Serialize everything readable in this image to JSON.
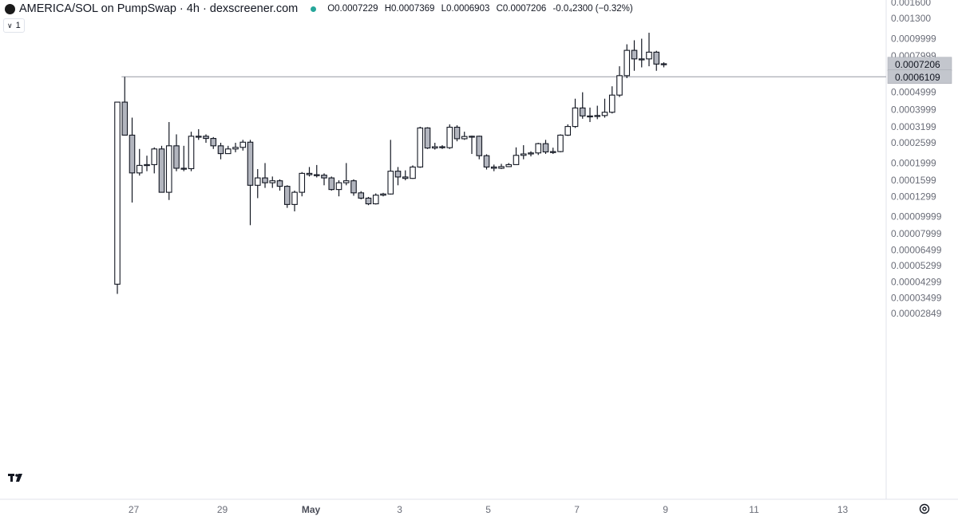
{
  "header": {
    "title": "AMERICA/SOL on PumpSwap · 4h · dexscreener.com",
    "ohlc": {
      "open": "O0.0007229",
      "high": "H0.0007369",
      "low": "L0.0006903",
      "close": "C0.0007206",
      "change": "-0.0₄2300 (−0.32%)"
    }
  },
  "toolbar": {
    "interval_label": "1"
  },
  "chart_data": {
    "type": "candlestick",
    "y_scale": "log",
    "y_range": [
      2.8e-06,
      0.00165
    ],
    "y_ticks": [
      {
        "value": 0.0016,
        "label": "0.001600"
      },
      {
        "value": 0.0013,
        "label": "0.001300"
      },
      {
        "value": 0.0009999,
        "label": "0.0009999"
      },
      {
        "value": 0.0007999,
        "label": "0.0007999"
      },
      {
        "value": 0.0006499,
        "label": "0.0006499"
      },
      {
        "value": 0.0004999,
        "label": "0.0004999"
      },
      {
        "value": 0.0003999,
        "label": "0.0003999"
      },
      {
        "value": 0.0003199,
        "label": "0.0003199"
      },
      {
        "value": 0.0002599,
        "label": "0.0002599"
      },
      {
        "value": 0.0001999,
        "label": "0.0001999"
      },
      {
        "value": 0.0001599,
        "label": "0.0001599"
      },
      {
        "value": 0.0001299,
        "label": "0.0001299"
      },
      {
        "value": 9.999e-05,
        "label": "0.00009999"
      },
      {
        "value": 7.999e-05,
        "label": "0.00007999"
      },
      {
        "value": 6.499e-05,
        "label": "0.00006499"
      },
      {
        "value": 5.299e-05,
        "label": "0.00005299"
      },
      {
        "value": 4.299e-05,
        "label": "0.00004299"
      },
      {
        "value": 3.499e-05,
        "label": "0.00003499"
      },
      {
        "value": 2.849e-05,
        "label": "0.00002849"
      }
    ],
    "x_labels": [
      {
        "day": 27,
        "label": "27",
        "bold": false
      },
      {
        "day": 29,
        "label": "29",
        "bold": false
      },
      {
        "day": 31,
        "label": "May",
        "bold": true
      },
      {
        "day": 33,
        "label": "3",
        "bold": false
      },
      {
        "day": 35,
        "label": "5",
        "bold": false
      },
      {
        "day": 37,
        "label": "7",
        "bold": false
      },
      {
        "day": 39,
        "label": "9",
        "bold": false
      },
      {
        "day": 41,
        "label": "11",
        "bold": false
      },
      {
        "day": 43,
        "label": "13",
        "bold": false
      }
    ],
    "x_start_day": 26.63,
    "candle_interval_hours": 4,
    "candles": [
      [
        4.17e-05,
        0.00044,
        3.68e-05,
        0.00044
      ],
      [
        0.00044,
        0.000287,
        0.000287,
        0.00061
      ],
      [
        0.000287,
        0.000176,
        0.00012,
        0.00036
      ],
      [
        0.000176,
        0.000194,
        0.00017,
        0.00024
      ],
      [
        0.000194,
        0.000196,
        0.00018,
        0.00022
      ],
      [
        0.000196,
        0.00024,
        0.000175,
        0.000245
      ],
      [
        0.00024,
        0.000137,
        0.000137,
        0.00025
      ],
      [
        0.000137,
        0.00025,
        0.000124,
        0.00034
      ],
      [
        0.00025,
        0.000187,
        0.00018,
        0.00029
      ],
      [
        0.000187,
        0.000186,
        0.00018,
        0.00025
      ],
      [
        0.000186,
        0.000283,
        0.00018,
        0.0003
      ],
      [
        0.000283,
        0.000283,
        0.00027,
        0.00031
      ],
      [
        0.000283,
        0.000275,
        0.00026,
        0.00029
      ],
      [
        0.000275,
        0.00025,
        0.00024,
        0.00028
      ],
      [
        0.00025,
        0.000226,
        0.00021,
        0.00026
      ],
      [
        0.000226,
        0.00024,
        0.000225,
        0.00025
      ],
      [
        0.00024,
        0.000245,
        0.00023,
        0.00026
      ],
      [
        0.000245,
        0.000262,
        0.000235,
        0.00027
      ],
      [
        0.000262,
        0.00015,
        8.95e-05,
        0.00027
      ],
      [
        0.00015,
        0.000165,
        0.000127,
        0.000185
      ],
      [
        0.000165,
        0.000155,
        0.000145,
        0.0002
      ],
      [
        0.000155,
        0.000159,
        0.000145,
        0.000168
      ],
      [
        0.000159,
        0.000148,
        0.00014,
        0.000162
      ],
      [
        0.000148,
        0.000117,
        0.000112,
        0.00015
      ],
      [
        0.000117,
        0.000137,
        0.000107,
        0.00014
      ],
      [
        0.000137,
        0.000175,
        0.00013,
        0.000178
      ],
      [
        0.000175,
        0.000172,
        0.000168,
        0.00019
      ],
      [
        0.000172,
        0.000171,
        0.000166,
        0.000195
      ],
      [
        0.000171,
        0.000165,
        0.00015,
        0.000175
      ],
      [
        0.000165,
        0.000142,
        0.00014,
        0.000168
      ],
      [
        0.000142,
        0.000155,
        0.00013,
        0.00016
      ],
      [
        0.000155,
        0.000159,
        0.00015,
        0.0002
      ],
      [
        0.000159,
        0.000136,
        0.000131,
        0.000162
      ],
      [
        0.000136,
        0.000127,
        0.000125,
        0.000139
      ],
      [
        0.000127,
        0.000118,
        0.000116,
        0.000129
      ],
      [
        0.000118,
        0.000132,
        0.000117,
        0.000135
      ],
      [
        0.000132,
        0.000134,
        0.00013,
        0.000136
      ],
      [
        0.000134,
        0.00018,
        0.000133,
        0.00027
      ],
      [
        0.00018,
        0.000167,
        0.00015,
        0.00019
      ],
      [
        0.000167,
        0.000164,
        0.00016,
        0.000182
      ],
      [
        0.000164,
        0.00019,
        0.000163,
        0.000194
      ],
      [
        0.00019,
        0.000315,
        0.000188,
        0.00032
      ],
      [
        0.000315,
        0.000243,
        0.00024,
        0.000318
      ],
      [
        0.000243,
        0.000247,
        0.000238,
        0.00026
      ],
      [
        0.000247,
        0.000244,
        0.00024,
        0.000252
      ],
      [
        0.000244,
        0.000318,
        0.00024,
        0.00033
      ],
      [
        0.000318,
        0.000274,
        0.000265,
        0.000326
      ],
      [
        0.000274,
        0.000282,
        0.00027,
        0.0003
      ],
      [
        0.000282,
        0.000283,
        0.000225,
        0.000285
      ],
      [
        0.000283,
        0.00022,
        0.00021,
        0.000285
      ],
      [
        0.00022,
        0.00019,
        0.000184,
        0.000224
      ],
      [
        0.00019,
        0.000187,
        0.00018,
        0.000196
      ],
      [
        0.000187,
        0.000191,
        0.000185,
        0.000198
      ],
      [
        0.000191,
        0.000196,
        0.00019,
        0.0002
      ],
      [
        0.000196,
        0.000221,
        0.000195,
        0.000245
      ],
      [
        0.000221,
        0.000225,
        0.00021,
        0.000252
      ],
      [
        0.000225,
        0.000228,
        0.000218,
        0.000233
      ],
      [
        0.000228,
        0.000257,
        0.000222,
        0.00026
      ],
      [
        0.000257,
        0.000231,
        0.000225,
        0.00027
      ],
      [
        0.000231,
        0.000232,
        0.000225,
        0.000244
      ],
      [
        0.000232,
        0.000287,
        0.00023,
        0.00029
      ],
      [
        0.000287,
        0.000321,
        0.000284,
        0.00033
      ],
      [
        0.000321,
        0.000408,
        0.000315,
        0.00046
      ],
      [
        0.000408,
        0.000368,
        0.000355,
        0.0005
      ],
      [
        0.000368,
        0.000368,
        0.00034,
        0.00041
      ],
      [
        0.000368,
        0.00037,
        0.000353,
        0.00042
      ],
      [
        0.00037,
        0.000386,
        0.00036,
        0.00046
      ],
      [
        0.000386,
        0.000482,
        0.00038,
        0.00054
      ],
      [
        0.000482,
        0.00062,
        0.00047,
        0.0007
      ],
      [
        0.00062,
        0.00086,
        0.0006,
        0.00093
      ],
      [
        0.00086,
        0.00077,
        0.00066,
        0.00098
      ],
      [
        0.00077,
        0.00077,
        0.00069,
        0.001
      ],
      [
        0.00077,
        0.00084,
        0.0007,
        0.00108
      ],
      [
        0.00084,
        0.00072,
        0.00066,
        0.000855
      ],
      [
        0.0007229,
        0.0007206,
        0.0006903,
        0.0007369
      ]
    ],
    "horizontal_line": {
      "value": 0.0006109
    },
    "price_labels": [
      {
        "value": 0.0007206,
        "label": "0.0007206"
      },
      {
        "value": 0.0006109,
        "label": "0.0006109"
      }
    ]
  }
}
